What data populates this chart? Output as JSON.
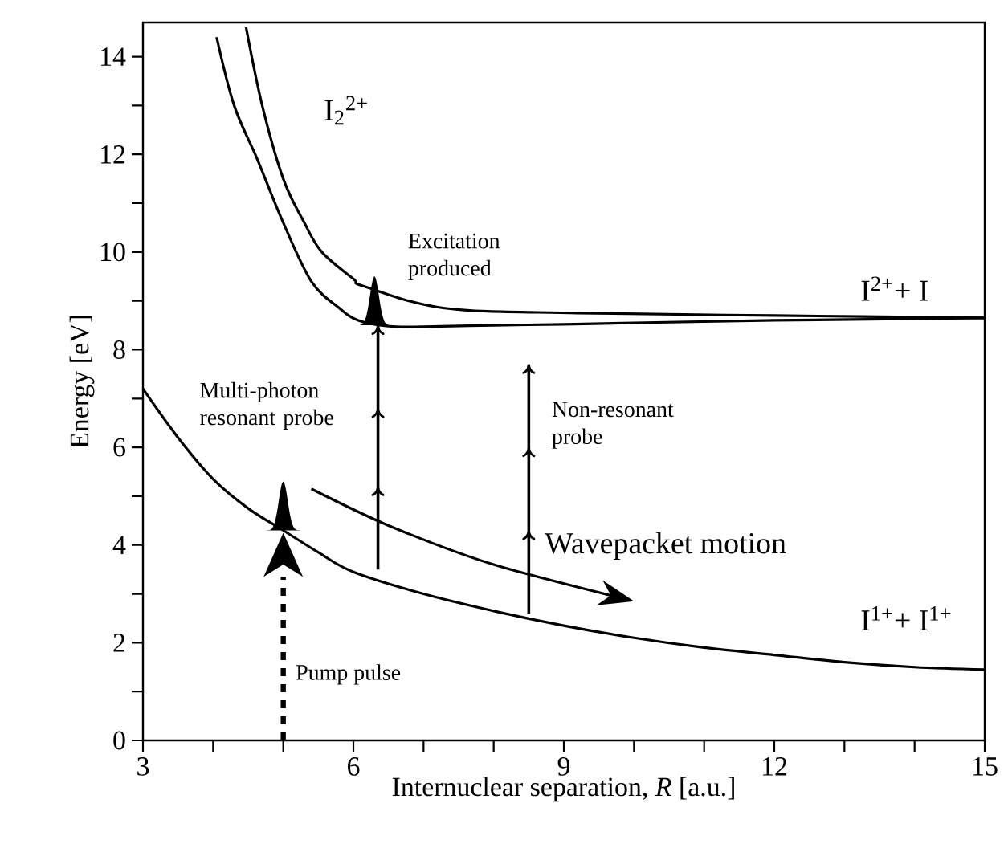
{
  "chart_data": {
    "type": "line",
    "xlabel": "Internuclear separation, *R* [a.u.]",
    "ylabel": "Energy [eV]",
    "xlim": [
      3,
      15
    ],
    "ylim": [
      0,
      14.7
    ],
    "xticks": [
      3,
      {
        "value": 4,
        "label": null
      },
      {
        "value": 5,
        "label": null
      },
      6,
      {
        "value": 7,
        "label": null
      },
      {
        "value": 8,
        "label": null
      },
      9,
      {
        "value": 10,
        "label": null
      },
      {
        "value": 11,
        "label": null
      },
      12,
      {
        "value": 13,
        "label": null
      },
      {
        "value": 14,
        "label": null
      },
      15
    ],
    "yticks": [
      0,
      {
        "value": 1,
        "label": null
      },
      2,
      {
        "value": 3,
        "label": null
      },
      4,
      {
        "value": 5,
        "label": null
      },
      6,
      {
        "value": 7,
        "label": null
      },
      8,
      {
        "value": 9,
        "label": null
      },
      10,
      {
        "value": 11,
        "label": null
      },
      12,
      {
        "value": 13,
        "label": null
      },
      14
    ],
    "grid": false,
    "marker": "none",
    "line_style": "solid",
    "series": [
      {
        "color": "#000000",
        "x": [
          3,
          3.5,
          4,
          4.5,
          5,
          5.5,
          6,
          7,
          8,
          9,
          10,
          11,
          12,
          13,
          14,
          15
        ],
        "values": [
          7.2,
          6.2,
          5.35,
          4.75,
          4.3,
          3.85,
          3.45,
          3.0,
          2.65,
          2.35,
          2.1,
          1.9,
          1.75,
          1.6,
          1.5,
          1.45
        ]
      },
      {
        "color": "#000000",
        "x": [
          4.05,
          4.3,
          4.63,
          5.0,
          5.4,
          5.8,
          6.07,
          6.5,
          7,
          8,
          9,
          10,
          12,
          15
        ],
        "values": [
          14.4,
          13.0,
          11.9,
          10.6,
          9.4,
          8.85,
          8.6,
          8.48,
          8.47,
          8.5,
          8.52,
          8.55,
          8.6,
          8.65
        ]
      },
      {
        "color": "#000000",
        "x": [
          4.47,
          4.7,
          5.0,
          5.3,
          5.55,
          6.0,
          6.15,
          7.3,
          9.2,
          12,
          15
        ],
        "values": [
          14.6,
          13.0,
          11.5,
          10.6,
          10.0,
          9.45,
          9.3,
          8.85,
          8.75,
          8.7,
          8.65
        ]
      }
    ],
    "annotations": [
      "I$_{2}$$^{2+}$",
      "Excitation produced",
      "I$^{2+}$+ I",
      "Multi-photon resonant probe",
      "Non-resonant probe",
      "Wavepacket motion",
      "I$^{1+}$+ I$^{1+}$",
      "Pump pulse"
    ]
  }
}
